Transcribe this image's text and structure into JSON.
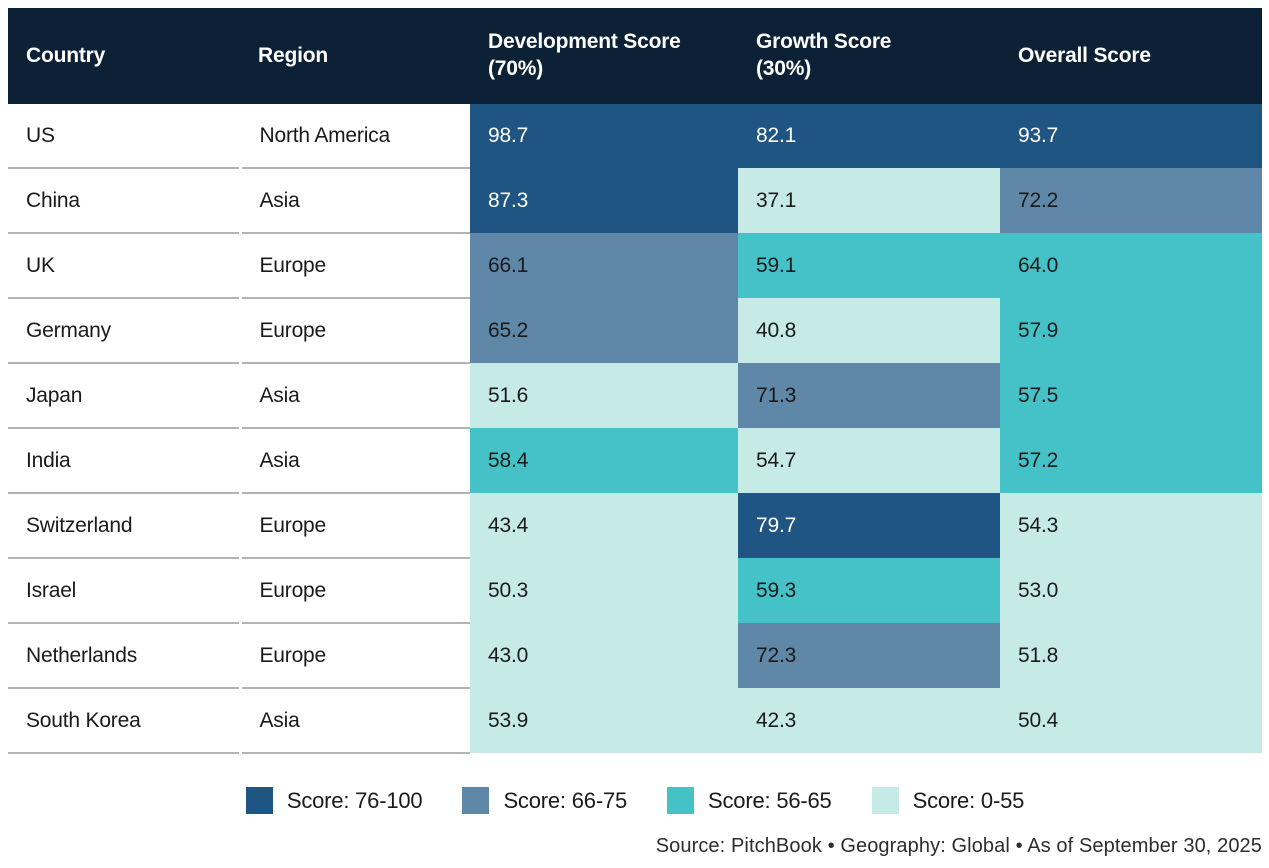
{
  "colors": {
    "page_bg": "#ffffff",
    "header_bg": "#0c2036",
    "header_text": "#ffffff",
    "text_dark": "#1a1a1a",
    "text_light": "#ffffff",
    "white_text_band": "76-100",
    "row_divider": "#b3b3b3"
  },
  "header": {
    "columns": [
      {
        "line1": "Country",
        "line2": ""
      },
      {
        "line1": "Region",
        "line2": ""
      },
      {
        "line1": "Development Score",
        "line2": "(70%)"
      },
      {
        "line1": "Growth Score",
        "line2": "(30%)"
      },
      {
        "line1": "Overall Score",
        "line2": ""
      }
    ]
  },
  "legend": [
    {
      "band": "76-100",
      "label": "Score: 76-100",
      "color": "#1e5582"
    },
    {
      "band": "66-75",
      "label": "Score: 66-75",
      "color": "#5f87a8"
    },
    {
      "band": "56-65",
      "label": "Score: 56-65",
      "color": "#45c2c8"
    },
    {
      "band": "0-55",
      "label": "Score: 0-55",
      "color": "#c6ebe7"
    }
  ],
  "footer": {
    "text": "Source: PitchBook  •  Geography: Global  •  As of September 30, 2025"
  },
  "chart_data": {
    "type": "heatmap",
    "title": "",
    "columns": [
      "Country",
      "Region",
      "Development Score (70%)",
      "Growth Score (30%)",
      "Overall Score"
    ],
    "score_bands": [
      {
        "label": "Score: 76-100",
        "range": [
          76,
          100
        ],
        "color": "#1e5582"
      },
      {
        "label": "Score: 66-75",
        "range": [
          66,
          75
        ],
        "color": "#5f87a8"
      },
      {
        "label": "Score: 56-65",
        "range": [
          56,
          65
        ],
        "color": "#45c2c8"
      },
      {
        "label": "Score: 0-55",
        "range": [
          0,
          55
        ],
        "color": "#c6ebe7"
      }
    ],
    "rows": [
      {
        "country": "US",
        "region": "North America",
        "cells": [
          {
            "value": "98.7",
            "band": "76-100"
          },
          {
            "value": "82.1",
            "band": "76-100"
          },
          {
            "value": "93.7",
            "band": "76-100"
          }
        ]
      },
      {
        "country": "China",
        "region": "Asia",
        "cells": [
          {
            "value": "87.3",
            "band": "76-100"
          },
          {
            "value": "37.1",
            "band": "0-55"
          },
          {
            "value": "72.2",
            "band": "66-75"
          }
        ]
      },
      {
        "country": "UK",
        "region": "Europe",
        "cells": [
          {
            "value": "66.1",
            "band": "66-75"
          },
          {
            "value": "59.1",
            "band": "56-65"
          },
          {
            "value": "64.0",
            "band": "56-65"
          }
        ]
      },
      {
        "country": "Germany",
        "region": "Europe",
        "cells": [
          {
            "value": "65.2",
            "band": "66-75"
          },
          {
            "value": "40.8",
            "band": "0-55"
          },
          {
            "value": "57.9",
            "band": "56-65"
          }
        ]
      },
      {
        "country": "Japan",
        "region": "Asia",
        "cells": [
          {
            "value": "51.6",
            "band": "0-55"
          },
          {
            "value": "71.3",
            "band": "66-75"
          },
          {
            "value": "57.5",
            "band": "56-65"
          }
        ]
      },
      {
        "country": "India",
        "region": "Asia",
        "cells": [
          {
            "value": "58.4",
            "band": "56-65"
          },
          {
            "value": "54.7",
            "band": "0-55"
          },
          {
            "value": "57.2",
            "band": "56-65"
          }
        ]
      },
      {
        "country": "Switzerland",
        "region": "Europe",
        "cells": [
          {
            "value": "43.4",
            "band": "0-55"
          },
          {
            "value": "79.7",
            "band": "76-100"
          },
          {
            "value": "54.3",
            "band": "0-55"
          }
        ]
      },
      {
        "country": "Israel",
        "region": "Europe",
        "cells": [
          {
            "value": "50.3",
            "band": "0-55"
          },
          {
            "value": "59.3",
            "band": "56-65"
          },
          {
            "value": "53.0",
            "band": "0-55"
          }
        ]
      },
      {
        "country": "Netherlands",
        "region": "Europe",
        "cells": [
          {
            "value": "43.0",
            "band": "0-55"
          },
          {
            "value": "72.3",
            "band": "66-75"
          },
          {
            "value": "51.8",
            "band": "0-55"
          }
        ]
      },
      {
        "country": "South Korea",
        "region": "Asia",
        "cells": [
          {
            "value": "53.9",
            "band": "0-55"
          },
          {
            "value": "42.3",
            "band": "0-55"
          },
          {
            "value": "50.4",
            "band": "0-55"
          }
        ]
      }
    ]
  }
}
